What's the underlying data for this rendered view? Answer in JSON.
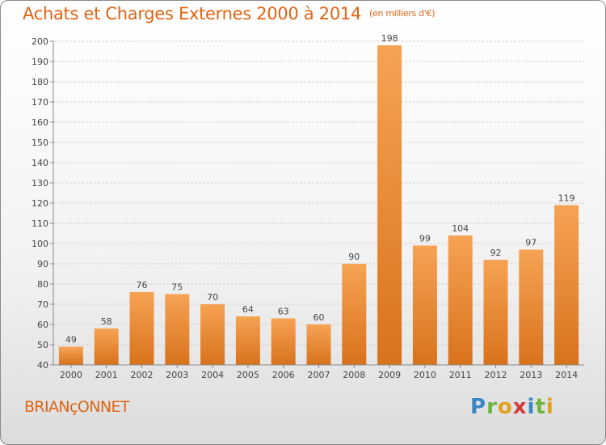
{
  "chart_data": {
    "type": "bar",
    "title": "Achats et Charges Externes 2000 à 2014",
    "unit_label": "(en milliers d'€)",
    "categories": [
      "2000",
      "2001",
      "2002",
      "2003",
      "2004",
      "2005",
      "2006",
      "2007",
      "2008",
      "2009",
      "2010",
      "2011",
      "2012",
      "2013",
      "2014"
    ],
    "values": [
      49,
      58,
      76,
      75,
      70,
      64,
      63,
      60,
      90,
      198,
      99,
      104,
      92,
      97,
      119
    ],
    "ylim": [
      40,
      200
    ],
    "yticks": [
      40,
      50,
      60,
      70,
      80,
      90,
      100,
      110,
      120,
      130,
      140,
      150,
      160,
      170,
      180,
      190,
      200
    ],
    "grid": true,
    "bar_color": "#f0913a",
    "xlabel": "",
    "ylabel": ""
  },
  "commune": "BRIANçONNET",
  "logo": {
    "text": "Proxiti",
    "letters": [
      "P",
      "r",
      "o",
      "x",
      "i",
      "t",
      "i"
    ]
  }
}
